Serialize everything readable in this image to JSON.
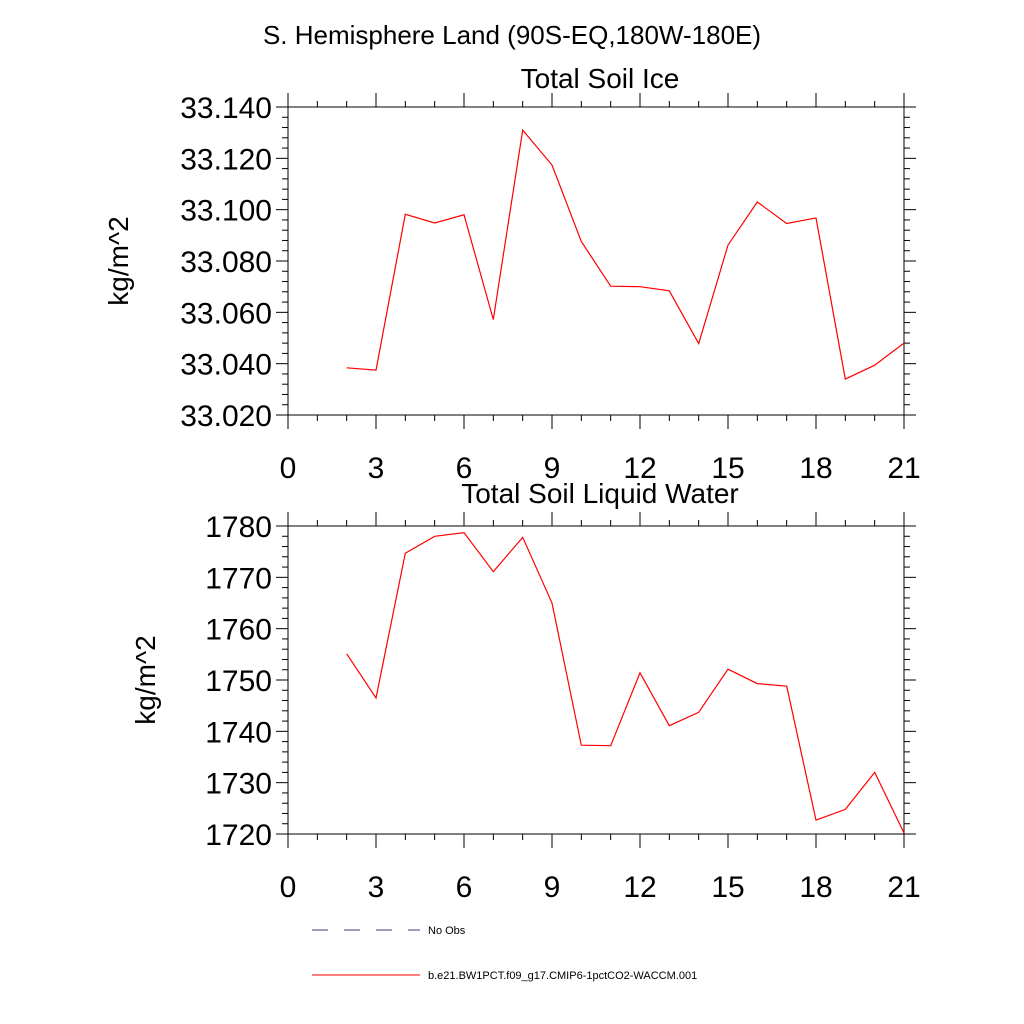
{
  "figure": {
    "title": "S. Hemisphere Land (90S-EQ,180W-180E)"
  },
  "chart_data": [
    {
      "type": "line",
      "title": "Total Soil Ice",
      "xlabel": "",
      "ylabel": "kg/m^2",
      "xlim": [
        0,
        21
      ],
      "ylim": [
        33.02,
        33.14
      ],
      "x_ticks": [
        0,
        3,
        6,
        9,
        12,
        15,
        18,
        21
      ],
      "x_tick_labels": [
        "0",
        "3",
        "6",
        "9",
        "12",
        "15",
        "18",
        "21"
      ],
      "y_ticks": [
        33.02,
        33.04,
        33.06,
        33.08,
        33.1,
        33.12,
        33.14
      ],
      "y_tick_labels": [
        "33.020",
        "33.040",
        "33.060",
        "33.080",
        "33.100",
        "33.120",
        "33.140"
      ],
      "series": [
        {
          "name": "b.e21.BW1PCT.f09_g17.CMIP6-1pctCO2-WACCM.001",
          "color": "#ff0000",
          "x": [
            2,
            3,
            4,
            5,
            6,
            7,
            8,
            9,
            10,
            11,
            12,
            13,
            14,
            15,
            16,
            17,
            18,
            19,
            20,
            21
          ],
          "values": [
            33.0384,
            33.0375,
            33.0982,
            33.0948,
            33.098,
            33.0572,
            33.131,
            33.1174,
            33.0876,
            33.0702,
            33.07,
            33.0684,
            33.0478,
            33.0862,
            33.103,
            33.0946,
            33.0968,
            33.034,
            33.0394,
            33.048
          ]
        }
      ]
    },
    {
      "type": "line",
      "title": "Total Soil Liquid Water",
      "xlabel": "",
      "ylabel": "kg/m^2",
      "xlim": [
        0,
        21
      ],
      "ylim": [
        1720,
        1780
      ],
      "x_ticks": [
        0,
        3,
        6,
        9,
        12,
        15,
        18,
        21
      ],
      "x_tick_labels": [
        "0",
        "3",
        "6",
        "9",
        "12",
        "15",
        "18",
        "21"
      ],
      "y_ticks": [
        1720,
        1730,
        1740,
        1750,
        1760,
        1770,
        1780
      ],
      "y_tick_labels": [
        "1720",
        "1730",
        "1740",
        "1750",
        "1760",
        "1770",
        "1780"
      ],
      "series": [
        {
          "name": "b.e21.BW1PCT.f09_g17.CMIP6-1pctCO2-WACCM.001",
          "color": "#ff0000",
          "x": [
            2,
            3,
            4,
            5,
            6,
            7,
            8,
            9,
            10,
            11,
            12,
            13,
            14,
            15,
            16,
            17,
            18,
            19,
            20,
            21
          ],
          "values": [
            1755.1,
            1746.5,
            1774.7,
            1778.0,
            1778.7,
            1771.1,
            1777.8,
            1765.0,
            1737.3,
            1737.2,
            1751.4,
            1741.1,
            1743.7,
            1752.1,
            1749.3,
            1748.8,
            1722.7,
            1724.8,
            1732.0,
            1720.2
          ]
        }
      ]
    }
  ],
  "legend": [
    {
      "label": "No Obs",
      "color": "#3a3a8c",
      "style": "dashed"
    },
    {
      "label": "b.e21.BW1PCT.f09_g17.CMIP6-1pctCO2-WACCM.001",
      "color": "#ff0000",
      "style": "solid"
    }
  ]
}
